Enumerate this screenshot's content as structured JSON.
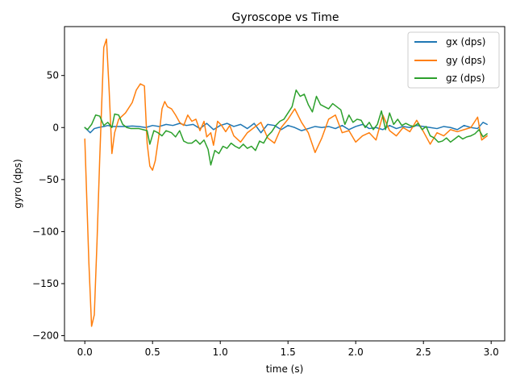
{
  "chart_data": {
    "type": "line",
    "title": "Gyroscope vs Time",
    "xlabel": "time (s)",
    "ylabel": "gyro (dps)",
    "xlim": [
      -0.15,
      3.1
    ],
    "ylim": [
      -205,
      97
    ],
    "xticks": [
      0.0,
      0.5,
      1.0,
      1.5,
      2.0,
      2.5,
      3.0
    ],
    "xtick_labels": [
      "0.0",
      "0.5",
      "1.0",
      "1.5",
      "2.0",
      "2.5",
      "3.0"
    ],
    "yticks": [
      -200,
      -150,
      -100,
      -50,
      0,
      50
    ],
    "ytick_labels": [
      "−200",
      "−150",
      "−100",
      "−50",
      "0",
      "50"
    ],
    "grid": false,
    "legend_position": "top-right",
    "series": [
      {
        "name": "gx (dps)",
        "color": "#1f77b4",
        "points": [
          [
            0.0,
            0
          ],
          [
            0.04,
            -5
          ],
          [
            0.07,
            -1
          ],
          [
            0.1,
            0
          ],
          [
            0.14,
            1
          ],
          [
            0.17,
            2
          ],
          [
            0.2,
            1
          ],
          [
            0.25,
            1
          ],
          [
            0.3,
            1
          ],
          [
            0.35,
            1.5
          ],
          [
            0.4,
            1
          ],
          [
            0.45,
            0
          ],
          [
            0.5,
            2
          ],
          [
            0.55,
            1
          ],
          [
            0.6,
            3
          ],
          [
            0.65,
            2
          ],
          [
            0.7,
            4
          ],
          [
            0.75,
            2
          ],
          [
            0.8,
            3
          ],
          [
            0.85,
            -1
          ],
          [
            0.9,
            4
          ],
          [
            0.95,
            -2
          ],
          [
            1.0,
            2
          ],
          [
            1.05,
            4
          ],
          [
            1.1,
            1
          ],
          [
            1.15,
            3
          ],
          [
            1.2,
            -1
          ],
          [
            1.25,
            4
          ],
          [
            1.3,
            -5
          ],
          [
            1.35,
            3
          ],
          [
            1.4,
            2
          ],
          [
            1.45,
            -2
          ],
          [
            1.5,
            2
          ],
          [
            1.55,
            0
          ],
          [
            1.6,
            -3
          ],
          [
            1.65,
            -1
          ],
          [
            1.7,
            1
          ],
          [
            1.75,
            0
          ],
          [
            1.8,
            1
          ],
          [
            1.85,
            -1
          ],
          [
            1.9,
            2
          ],
          [
            1.95,
            -2
          ],
          [
            2.0,
            1
          ],
          [
            2.05,
            3
          ],
          [
            2.1,
            -1
          ],
          [
            2.15,
            0
          ],
          [
            2.2,
            -2
          ],
          [
            2.25,
            2
          ],
          [
            2.3,
            -1
          ],
          [
            2.35,
            1
          ],
          [
            2.4,
            0
          ],
          [
            2.45,
            2
          ],
          [
            2.5,
            1
          ],
          [
            2.55,
            0
          ],
          [
            2.6,
            -1
          ],
          [
            2.65,
            1
          ],
          [
            2.7,
            0
          ],
          [
            2.75,
            -2
          ],
          [
            2.8,
            2
          ],
          [
            2.85,
            0
          ],
          [
            2.9,
            -1
          ],
          [
            2.94,
            5
          ],
          [
            2.97,
            3
          ]
        ]
      },
      {
        "name": "gy (dps)",
        "color": "#ff7f0e",
        "points": [
          [
            0.0,
            -11
          ],
          [
            0.03,
            -130
          ],
          [
            0.05,
            -191
          ],
          [
            0.07,
            -180
          ],
          [
            0.09,
            -110
          ],
          [
            0.11,
            -30
          ],
          [
            0.14,
            77
          ],
          [
            0.16,
            85
          ],
          [
            0.18,
            35
          ],
          [
            0.2,
            -25
          ],
          [
            0.22,
            -5
          ],
          [
            0.25,
            8
          ],
          [
            0.3,
            14
          ],
          [
            0.35,
            24
          ],
          [
            0.38,
            36
          ],
          [
            0.41,
            42
          ],
          [
            0.44,
            40
          ],
          [
            0.46,
            -15
          ],
          [
            0.48,
            -37
          ],
          [
            0.5,
            -41
          ],
          [
            0.52,
            -32
          ],
          [
            0.55,
            -5
          ],
          [
            0.57,
            18
          ],
          [
            0.59,
            25
          ],
          [
            0.61,
            20
          ],
          [
            0.64,
            18
          ],
          [
            0.67,
            12
          ],
          [
            0.7,
            5
          ],
          [
            0.73,
            2
          ],
          [
            0.76,
            12
          ],
          [
            0.79,
            6
          ],
          [
            0.82,
            8
          ],
          [
            0.85,
            -3
          ],
          [
            0.88,
            6
          ],
          [
            0.9,
            -9
          ],
          [
            0.93,
            -5
          ],
          [
            0.95,
            -17
          ],
          [
            0.98,
            6
          ],
          [
            1.01,
            2
          ],
          [
            1.04,
            -4
          ],
          [
            1.07,
            2
          ],
          [
            1.1,
            -8
          ],
          [
            1.15,
            -14
          ],
          [
            1.2,
            -5
          ],
          [
            1.25,
            0
          ],
          [
            1.3,
            5
          ],
          [
            1.35,
            -10
          ],
          [
            1.4,
            -15
          ],
          [
            1.45,
            0
          ],
          [
            1.5,
            8
          ],
          [
            1.55,
            18
          ],
          [
            1.6,
            5
          ],
          [
            1.65,
            -5
          ],
          [
            1.7,
            -24
          ],
          [
            1.75,
            -10
          ],
          [
            1.8,
            8
          ],
          [
            1.85,
            12
          ],
          [
            1.9,
            -5
          ],
          [
            1.95,
            -3
          ],
          [
            2.0,
            -14
          ],
          [
            2.05,
            -8
          ],
          [
            2.1,
            -5
          ],
          [
            2.15,
            -12
          ],
          [
            2.2,
            12
          ],
          [
            2.25,
            -3
          ],
          [
            2.3,
            -8
          ],
          [
            2.35,
            0
          ],
          [
            2.4,
            -4
          ],
          [
            2.45,
            7
          ],
          [
            2.5,
            -4
          ],
          [
            2.55,
            -16
          ],
          [
            2.6,
            -5
          ],
          [
            2.65,
            -8
          ],
          [
            2.7,
            -2
          ],
          [
            2.75,
            -4
          ],
          [
            2.8,
            -2
          ],
          [
            2.85,
            0
          ],
          [
            2.9,
            10
          ],
          [
            2.93,
            -12
          ],
          [
            2.97,
            -8
          ]
        ]
      },
      {
        "name": "gz (dps)",
        "color": "#2ca02c",
        "points": [
          [
            0.0,
            0
          ],
          [
            0.02,
            -2
          ],
          [
            0.05,
            3
          ],
          [
            0.08,
            12
          ],
          [
            0.11,
            11
          ],
          [
            0.14,
            2
          ],
          [
            0.17,
            5
          ],
          [
            0.2,
            0
          ],
          [
            0.22,
            13
          ],
          [
            0.25,
            12
          ],
          [
            0.28,
            3
          ],
          [
            0.31,
            0
          ],
          [
            0.34,
            -1
          ],
          [
            0.37,
            -1
          ],
          [
            0.4,
            -1
          ],
          [
            0.43,
            -2
          ],
          [
            0.46,
            -3
          ],
          [
            0.48,
            -16
          ],
          [
            0.51,
            -3
          ],
          [
            0.54,
            -5
          ],
          [
            0.57,
            -8
          ],
          [
            0.6,
            -3
          ],
          [
            0.64,
            -5
          ],
          [
            0.67,
            -9
          ],
          [
            0.7,
            -3
          ],
          [
            0.73,
            -13
          ],
          [
            0.76,
            -15
          ],
          [
            0.79,
            -15
          ],
          [
            0.82,
            -12
          ],
          [
            0.85,
            -16
          ],
          [
            0.88,
            -12
          ],
          [
            0.91,
            -21
          ],
          [
            0.93,
            -36
          ],
          [
            0.96,
            -22
          ],
          [
            0.99,
            -25
          ],
          [
            1.02,
            -18
          ],
          [
            1.05,
            -20
          ],
          [
            1.08,
            -15
          ],
          [
            1.11,
            -18
          ],
          [
            1.14,
            -20
          ],
          [
            1.17,
            -16
          ],
          [
            1.2,
            -20
          ],
          [
            1.23,
            -18
          ],
          [
            1.26,
            -22
          ],
          [
            1.29,
            -13
          ],
          [
            1.32,
            -15
          ],
          [
            1.35,
            -8
          ],
          [
            1.38,
            -4
          ],
          [
            1.41,
            2
          ],
          [
            1.44,
            6
          ],
          [
            1.47,
            8
          ],
          [
            1.5,
            14
          ],
          [
            1.53,
            20
          ],
          [
            1.56,
            36
          ],
          [
            1.59,
            30
          ],
          [
            1.62,
            32
          ],
          [
            1.65,
            22
          ],
          [
            1.68,
            15
          ],
          [
            1.71,
            30
          ],
          [
            1.74,
            22
          ],
          [
            1.77,
            20
          ],
          [
            1.8,
            18
          ],
          [
            1.83,
            23
          ],
          [
            1.86,
            20
          ],
          [
            1.89,
            17
          ],
          [
            1.92,
            3
          ],
          [
            1.95,
            12
          ],
          [
            1.98,
            5
          ],
          [
            2.01,
            8
          ],
          [
            2.04,
            7
          ],
          [
            2.07,
            0
          ],
          [
            2.1,
            5
          ],
          [
            2.13,
            -2
          ],
          [
            2.16,
            3
          ],
          [
            2.19,
            16
          ],
          [
            2.22,
            -2
          ],
          [
            2.25,
            14
          ],
          [
            2.28,
            3
          ],
          [
            2.31,
            8
          ],
          [
            2.34,
            2
          ],
          [
            2.37,
            4
          ],
          [
            2.4,
            2
          ],
          [
            2.43,
            1
          ],
          [
            2.46,
            4
          ],
          [
            2.49,
            -2
          ],
          [
            2.52,
            1
          ],
          [
            2.55,
            -8
          ],
          [
            2.58,
            -10
          ],
          [
            2.61,
            -14
          ],
          [
            2.64,
            -13
          ],
          [
            2.67,
            -10
          ],
          [
            2.7,
            -14
          ],
          [
            2.73,
            -11
          ],
          [
            2.76,
            -8
          ],
          [
            2.79,
            -11
          ],
          [
            2.82,
            -9
          ],
          [
            2.85,
            -8
          ],
          [
            2.88,
            -6
          ],
          [
            2.91,
            -2
          ],
          [
            2.94,
            -9
          ],
          [
            2.97,
            -6
          ]
        ]
      }
    ]
  }
}
